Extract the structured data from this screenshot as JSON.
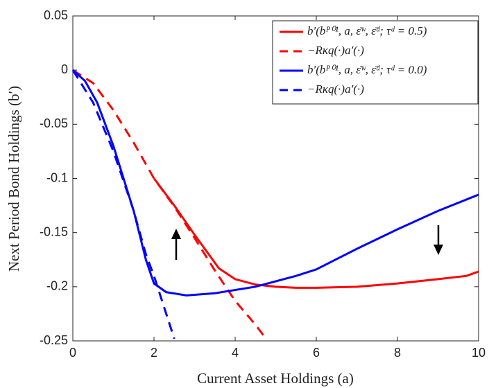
{
  "chart_data": {
    "type": "line",
    "x_label": "Current Asset Holdings (a)",
    "y_label": "Next Period Bond Holdings (b′)",
    "xlim": [
      0,
      10
    ],
    "xticks": [
      0,
      2,
      4,
      6,
      8,
      10
    ],
    "ylim": [
      -0.25,
      0.05
    ],
    "yticks": [
      -0.25,
      -0.2,
      -0.15,
      -0.1,
      -0.05,
      0,
      0.05
    ],
    "legend": "upper right",
    "series": [
      {
        "name": "b′(bᴾ⁰¹, a, ε̄ʷ, ε̄ᵈ; τᵈ = 0.5)",
        "color": "#ff0000",
        "dash": false,
        "x": [
          2,
          2.5,
          3,
          3.6,
          4,
          4.5,
          5,
          5.5,
          6,
          7,
          8,
          9,
          9.7,
          10
        ],
        "values": [
          -0.1,
          -0.125,
          -0.152,
          -0.183,
          -0.193,
          -0.198,
          -0.2,
          -0.201,
          -0.201,
          -0.2,
          -0.197,
          -0.193,
          -0.19,
          -0.186
        ]
      },
      {
        "name": "−Rκq(·)a′(·)",
        "color": "#ff0000",
        "dash": true,
        "x": [
          0,
          0.5,
          1,
          1.5,
          2,
          2.5,
          3,
          3.5,
          4,
          4.5,
          4.7
        ],
        "values": [
          0,
          -0.012,
          -0.037,
          -0.067,
          -0.1,
          -0.126,
          -0.155,
          -0.185,
          -0.213,
          -0.235,
          -0.245
        ]
      },
      {
        "name": "b′(bᴾ⁰¹, a, ε̄ʷ, ε̄ᵈ; τᵈ = 0.0)",
        "color": "#0000ff",
        "dash": false,
        "x": [
          0,
          0.3,
          0.6,
          1,
          1.5,
          1.8,
          2,
          2.3,
          2.8,
          3.5,
          4.5,
          5.5,
          6,
          7,
          8,
          9,
          10
        ],
        "values": [
          0,
          -0.01,
          -0.03,
          -0.07,
          -0.13,
          -0.175,
          -0.197,
          -0.205,
          -0.208,
          -0.206,
          -0.2,
          -0.19,
          -0.184,
          -0.165,
          -0.147,
          -0.13,
          -0.115
        ]
      },
      {
        "name": "−Rκq(·)a′(·)",
        "color": "#0000ff",
        "dash": true,
        "x": [
          0,
          0.5,
          1,
          1.5,
          1.8,
          2,
          2.5
        ],
        "values": [
          0,
          -0.03,
          -0.075,
          -0.13,
          -0.17,
          -0.19,
          -0.248
        ]
      }
    ]
  }
}
